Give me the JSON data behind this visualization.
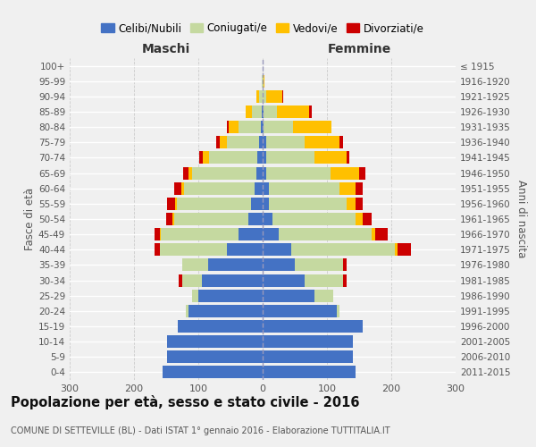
{
  "age_groups": [
    "0-4",
    "5-9",
    "10-14",
    "15-19",
    "20-24",
    "25-29",
    "30-34",
    "35-39",
    "40-44",
    "45-49",
    "50-54",
    "55-59",
    "60-64",
    "65-69",
    "70-74",
    "75-79",
    "80-84",
    "85-89",
    "90-94",
    "95-99",
    "100+"
  ],
  "birth_years": [
    "2011-2015",
    "2006-2010",
    "2001-2005",
    "1996-2000",
    "1991-1995",
    "1986-1990",
    "1981-1985",
    "1976-1980",
    "1971-1975",
    "1966-1970",
    "1961-1965",
    "1956-1960",
    "1951-1955",
    "1946-1950",
    "1941-1945",
    "1936-1940",
    "1931-1935",
    "1926-1930",
    "1921-1925",
    "1916-1920",
    "≤ 1915"
  ],
  "male": {
    "celibi": [
      155,
      148,
      148,
      132,
      115,
      100,
      95,
      85,
      55,
      38,
      22,
      18,
      12,
      10,
      8,
      5,
      3,
      2,
      0,
      0,
      0
    ],
    "coniugati": [
      0,
      0,
      0,
      0,
      5,
      10,
      30,
      40,
      105,
      120,
      115,
      115,
      110,
      100,
      75,
      50,
      35,
      15,
      5,
      1,
      0
    ],
    "vedovi": [
      0,
      0,
      0,
      0,
      0,
      0,
      0,
      0,
      0,
      2,
      3,
      3,
      5,
      5,
      10,
      12,
      15,
      10,
      5,
      0,
      0
    ],
    "divorziati": [
      0,
      0,
      0,
      0,
      0,
      0,
      5,
      0,
      8,
      8,
      10,
      12,
      10,
      8,
      5,
      5,
      3,
      0,
      0,
      0,
      0
    ]
  },
  "female": {
    "nubili": [
      145,
      140,
      140,
      155,
      115,
      80,
      65,
      50,
      45,
      25,
      15,
      10,
      10,
      5,
      5,
      5,
      2,
      2,
      0,
      0,
      0
    ],
    "coniugate": [
      0,
      0,
      0,
      0,
      5,
      30,
      60,
      75,
      160,
      145,
      130,
      120,
      110,
      100,
      75,
      60,
      45,
      20,
      5,
      1,
      0
    ],
    "vedove": [
      0,
      0,
      0,
      0,
      0,
      0,
      0,
      0,
      5,
      5,
      10,
      15,
      25,
      45,
      50,
      55,
      60,
      50,
      25,
      2,
      0
    ],
    "divorziate": [
      0,
      0,
      0,
      0,
      0,
      0,
      5,
      5,
      20,
      20,
      15,
      10,
      10,
      10,
      5,
      5,
      0,
      5,
      2,
      0,
      0
    ]
  },
  "colors": {
    "celibi": "#4472C4",
    "coniugati": "#c5d9a0",
    "vedovi": "#ffc000",
    "divorziati": "#cc0000"
  },
  "title": "Popolazione per età, sesso e stato civile - 2016",
  "subtitle": "COMUNE DI SETTEVILLE (BL) - Dati ISTAT 1° gennaio 2016 - Elaborazione TUTTITALIA.IT",
  "xlabel_left": "Maschi",
  "xlabel_right": "Femmine",
  "ylabel_left": "Fasce di età",
  "ylabel_right": "Anni di nascita",
  "xlim": 300,
  "legend_labels": [
    "Celibi/Nubili",
    "Coniugati/e",
    "Vedovi/e",
    "Divorziati/e"
  ],
  "bg_color": "#f0f0f0"
}
